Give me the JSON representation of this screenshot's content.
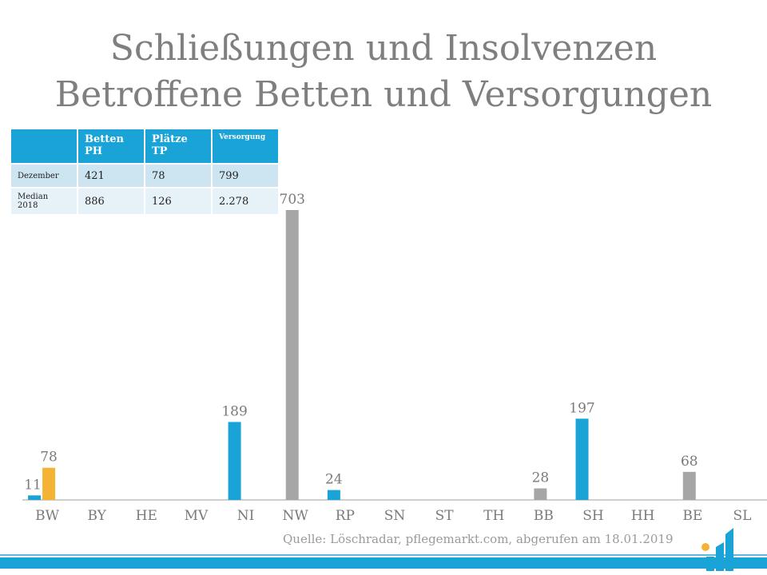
{
  "title_line1": "Schließungen und Insolvenzen",
  "title_line2": "Betroffene Betten und Versorgungen",
  "table": {
    "headers": [
      "",
      "Betten PH",
      "Plätze TP",
      "Versorgung"
    ],
    "rows": [
      [
        "Dezember",
        "421",
        "78",
        "799"
      ],
      [
        "Median 2018",
        "886",
        "126",
        "2.278"
      ]
    ]
  },
  "source": "Quelle: Löschradar, pflegemarkt.com, abgerufen am 18.01.2019",
  "colors": {
    "blue": "#1aa3d6",
    "orange": "#f5b335",
    "gray": "#a6a6a6",
    "title": "#7f7f7f"
  },
  "chart_data": {
    "type": "bar",
    "categories": [
      "BW",
      "BY",
      "HE",
      "MV",
      "NI",
      "NW",
      "RP",
      "SN",
      "ST",
      "TH",
      "BB",
      "SH",
      "HH",
      "BE",
      "SL"
    ],
    "series": [
      {
        "color": "#1aa3d6",
        "values": [
          11,
          0,
          0,
          0,
          189,
          0,
          24,
          0,
          0,
          0,
          0,
          197,
          0,
          0,
          0
        ]
      },
      {
        "color": "#f5b335",
        "values": [
          78,
          0,
          0,
          0,
          0,
          0,
          0,
          0,
          0,
          0,
          0,
          0,
          0,
          0,
          0
        ]
      },
      {
        "color": "#a6a6a6",
        "values": [
          0,
          0,
          0,
          0,
          0,
          703,
          0,
          0,
          0,
          0,
          28,
          0,
          0,
          68,
          0
        ]
      }
    ],
    "ylim": [
      0,
      710
    ],
    "grid": false,
    "legend": "none"
  }
}
